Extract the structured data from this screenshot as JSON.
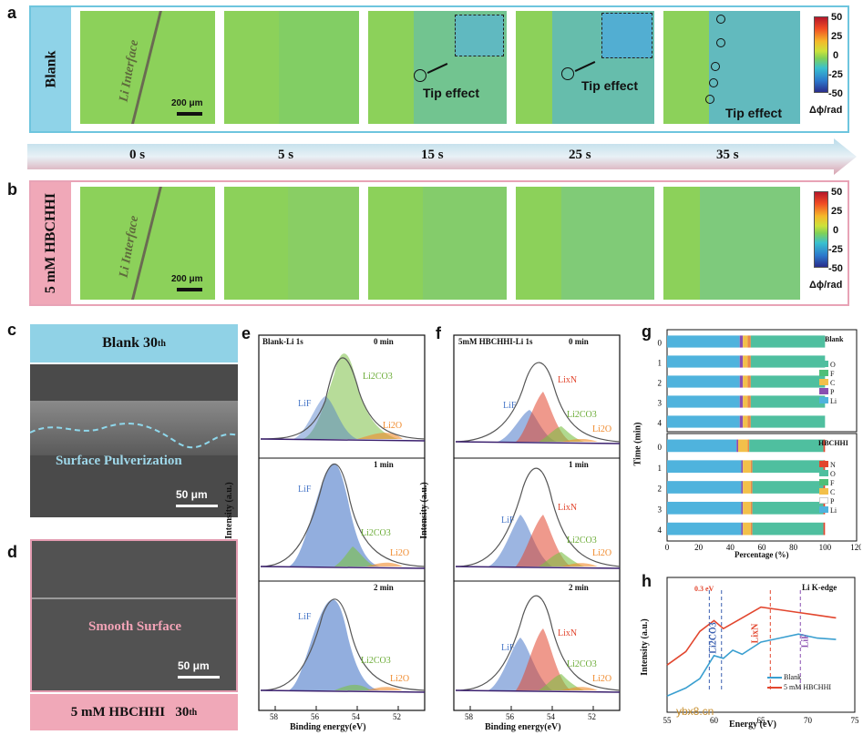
{
  "panel_labels": {
    "a": "a",
    "b": "b",
    "c": "c",
    "d": "d",
    "e": "e",
    "f": "f",
    "g": "g",
    "h": "h"
  },
  "panel_a": {
    "row_label": "Blank",
    "interface_label": "Li Interface",
    "scale_bar": "200 μm",
    "tip_effect": "Tip effect",
    "colorbar": {
      "ticks": [
        "50",
        "25",
        "0",
        "-25",
        "-50"
      ],
      "unit": "Δϕ/rad"
    }
  },
  "timeline": {
    "times": [
      "0 s",
      "5 s",
      "15 s",
      "25 s",
      "35 s"
    ]
  },
  "panel_b": {
    "row_label": "5 mM HBCHHI",
    "interface_label": "Li Interface",
    "scale_bar": "200 μm",
    "colorbar": {
      "ticks": [
        "50",
        "25",
        "0",
        "-25",
        "-50"
      ],
      "unit": "Δϕ/rad"
    }
  },
  "panel_c": {
    "title": "Blank 30",
    "title_sup": "th",
    "annotation": "Surface Pulverization",
    "scale_bar": "50 μm"
  },
  "panel_d": {
    "title": "5 mM HBCHHI   30",
    "title_sup": "th",
    "annotation": "Smooth Surface",
    "scale_bar": "50 μm"
  },
  "panel_e": {
    "title": "Blank-Li 1s",
    "ylabel": "Intensity (a.u.)",
    "xlabel": "Binding energy(eV)",
    "xticks": [
      "58",
      "56",
      "54",
      "52"
    ],
    "subpanels": [
      {
        "time": "0 min",
        "labels": [
          "LiF",
          "Li2CO3",
          "Li2O"
        ]
      },
      {
        "time": "1 min",
        "labels": [
          "LiF",
          "Li2CO3",
          "Li2O"
        ]
      },
      {
        "time": "2 min",
        "labels": [
          "LiF",
          "Li2CO3",
          "Li2O"
        ]
      }
    ]
  },
  "panel_f": {
    "title": "5mM HBCHHI-Li 1s",
    "ylabel": "Intensity (a.u.)",
    "xlabel": "Binding energy(eV)",
    "xticks": [
      "58",
      "56",
      "54",
      "52"
    ],
    "subpanels": [
      {
        "time": "0 min",
        "labels": [
          "LiF",
          "LixN",
          "Li2CO3",
          "Li2O"
        ]
      },
      {
        "time": "1 min",
        "labels": [
          "LiF",
          "LixN",
          "Li2CO3",
          "Li2O"
        ]
      },
      {
        "time": "2 min",
        "labels": [
          "LiF",
          "LixN",
          "Li2CO3",
          "Li2O"
        ]
      }
    ]
  },
  "panel_g": {
    "ylabel": "Time (min)",
    "xlabel": "Percentage (%)",
    "xticks": [
      "0",
      "20",
      "40",
      "60",
      "80",
      "100",
      "120"
    ],
    "blank": {
      "label": "Blank",
      "legend": [
        "O",
        "F",
        "C",
        "P",
        "Li"
      ]
    },
    "hbchhi": {
      "label": "HBCHHI",
      "legend": [
        "N",
        "O",
        "F",
        "C",
        "P",
        "Li"
      ]
    }
  },
  "panel_h": {
    "title": "Li K-edge",
    "ylabel": "Intensity (a.u.)",
    "xlabel": "Energy (eV)",
    "xticks": [
      "55",
      "60",
      "65",
      "70",
      "75"
    ],
    "shift": "0.3 eV",
    "vlabels": [
      "Li2CO3",
      "LixN",
      "LiF"
    ],
    "legend": [
      "Blank",
      "5 mM HBCHHI"
    ]
  },
  "watermark": "ybx8.cn",
  "colors": {
    "blank_tab": "#8fd3e8",
    "hbchhi_tab": "#f0a8b8",
    "phase_green": "#8cd15a",
    "phase_cyan": "#4fb6cf",
    "lif_blue": "#4a78c8",
    "li2co3_green": "#7cbf45",
    "li2o_orange": "#f08a2c",
    "lixn_red": "#e2462e"
  },
  "chart_data": [
    {
      "type": "bar",
      "title": "Blank",
      "categories": [
        "0",
        "1",
        "2",
        "3",
        "4"
      ],
      "series": [
        {
          "name": "Li",
          "values": [
            46,
            46,
            46,
            46,
            46
          ]
        },
        {
          "name": "P",
          "values": [
            2,
            2,
            2,
            2,
            2
          ]
        },
        {
          "name": "C",
          "values": [
            3,
            3,
            3,
            3,
            3
          ]
        },
        {
          "name": "F",
          "values": [
            2,
            2,
            2,
            2,
            2
          ]
        },
        {
          "name": "O",
          "values": [
            47,
            47,
            47,
            47,
            47
          ]
        }
      ],
      "xlim": [
        0,
        120
      ]
    },
    {
      "type": "bar",
      "title": "HBCHHI",
      "categories": [
        "0",
        "1",
        "2",
        "3",
        "4"
      ],
      "series": [
        {
          "name": "Li",
          "values": [
            44,
            47,
            47,
            47,
            47
          ]
        },
        {
          "name": "P",
          "values": [
            1,
            1,
            1,
            1,
            1
          ]
        },
        {
          "name": "C",
          "values": [
            6,
            5,
            5,
            5,
            5
          ]
        },
        {
          "name": "F",
          "values": [
            1,
            1,
            1,
            1,
            1
          ]
        },
        {
          "name": "O",
          "values": [
            47,
            45,
            45,
            45,
            45
          ]
        },
        {
          "name": "N",
          "values": [
            1,
            1,
            1,
            1,
            1
          ]
        }
      ],
      "xlim": [
        0,
        120
      ]
    },
    {
      "type": "line",
      "title": "Li K-edge",
      "xlabel": "Energy (eV)",
      "ylabel": "Intensity (a.u.)",
      "series": [
        {
          "name": "Blank",
          "x": [
            55,
            57,
            58.5,
            60,
            61,
            62,
            63,
            65,
            67,
            69,
            71,
            73
          ],
          "y": [
            0.12,
            0.18,
            0.25,
            0.42,
            0.4,
            0.46,
            0.43,
            0.52,
            0.55,
            0.58,
            0.55,
            0.54
          ]
        },
        {
          "name": "5 mM HBCHHI",
          "x": [
            55,
            57,
            58.5,
            60,
            61,
            62,
            63,
            65,
            67,
            69,
            71,
            73
          ],
          "y": [
            0.35,
            0.45,
            0.6,
            0.68,
            0.62,
            0.66,
            0.7,
            0.78,
            0.76,
            0.74,
            0.72,
            0.7
          ]
        }
      ],
      "xlim": [
        55,
        75
      ]
    }
  ]
}
